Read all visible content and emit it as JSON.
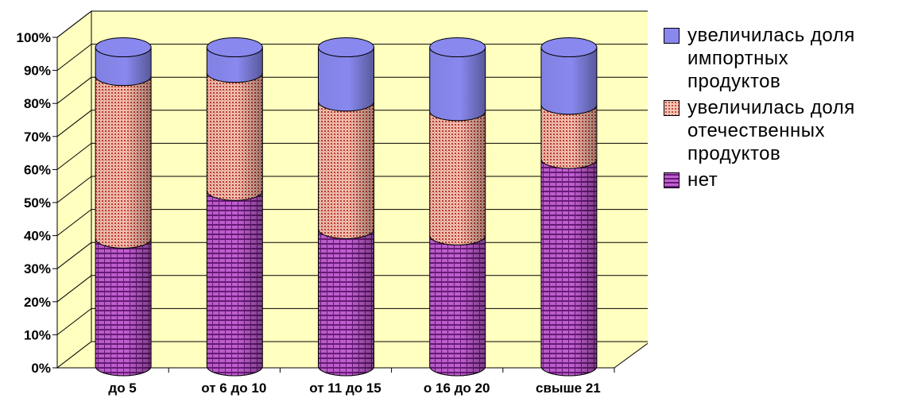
{
  "chart_data": {
    "type": "bar",
    "stacked": true,
    "normalized": true,
    "style": "3d-cylinder",
    "categories": [
      "до 5",
      "от 6 до 10",
      "от 11 до 15",
      "о 16 до 20",
      "свыше 21"
    ],
    "series": [
      {
        "name": "нет",
        "values": [
          40,
          55,
          43,
          41,
          65
        ],
        "color": "#9933aa",
        "pattern": "brick"
      },
      {
        "name": "увеличилась доля\nотечественных\nпродуктов",
        "values": [
          51,
          37,
          40,
          39,
          17
        ],
        "color": "#cc6666",
        "pattern": "dots"
      },
      {
        "name": "увеличилась доля\nимпортных\nпродуктов",
        "values": [
          9,
          8,
          17,
          20,
          18
        ],
        "color": "#8888ee",
        "pattern": "solid"
      }
    ],
    "yticks": [
      "0%",
      "10%",
      "20%",
      "30%",
      "40%",
      "50%",
      "60%",
      "70%",
      "80%",
      "90%",
      "100%"
    ],
    "ylim": [
      0,
      100
    ],
    "grid": true,
    "legend": "right",
    "wall_color": "#ffffc0"
  }
}
